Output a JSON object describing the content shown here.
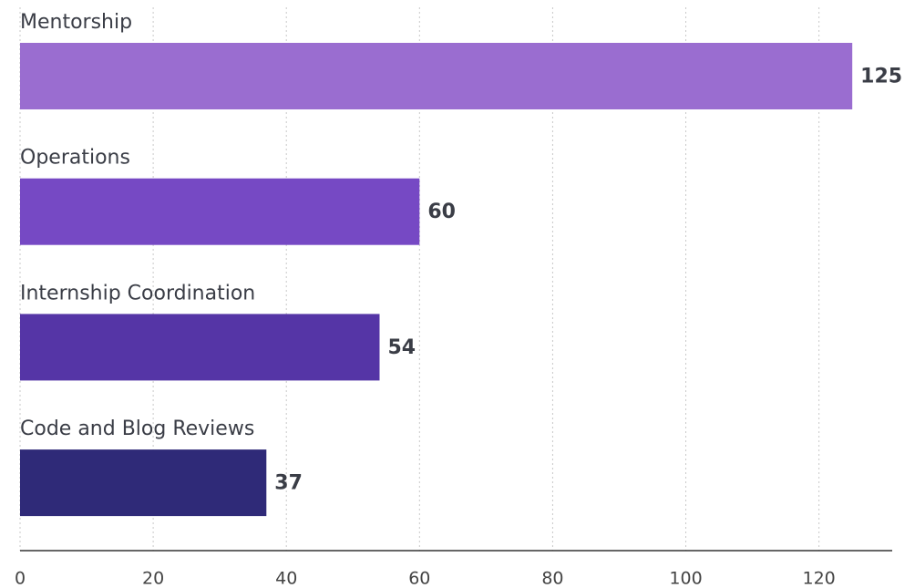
{
  "chart_data": {
    "type": "bar",
    "orientation": "horizontal",
    "categories": [
      "Mentorship",
      "Operations",
      "Internship Coordination",
      "Code and Blog Reviews"
    ],
    "values": [
      125,
      60,
      54,
      37
    ],
    "colors": [
      "#9a6dd0",
      "#7649c4",
      "#5535a6",
      "#2f2a78"
    ],
    "xlim": [
      0,
      131
    ],
    "xticks": [
      0,
      20,
      40,
      60,
      80,
      100,
      120
    ],
    "grid": true
  }
}
